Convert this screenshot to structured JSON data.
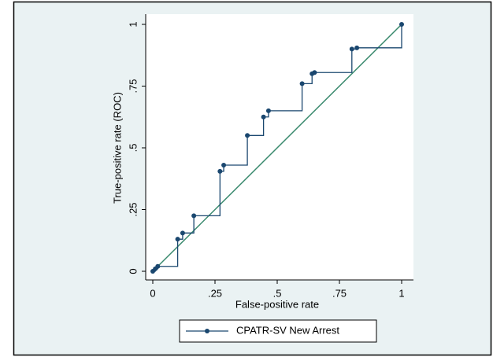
{
  "chart_data": {
    "type": "roc",
    "x_label": "False-positive rate",
    "y_label": "True-positive rate (ROC)",
    "series": [
      {
        "name": "CPATR-SV New Arrest",
        "color": "#1a476f",
        "x": [
          0,
          0.01,
          0.02,
          0.1,
          0.12,
          0.165,
          0.27,
          0.285,
          0.38,
          0.445,
          0.465,
          0.6,
          0.64,
          0.65,
          0.8,
          0.82,
          1
        ],
        "y": [
          0,
          0.01,
          0.02,
          0.13,
          0.155,
          0.225,
          0.405,
          0.43,
          0.55,
          0.625,
          0.65,
          0.76,
          0.8,
          0.805,
          0.9,
          0.905,
          1
        ]
      }
    ],
    "reference_color": "#3a8a6e",
    "xlim": [
      0,
      1
    ],
    "ylim": [
      0,
      1
    ],
    "xticks": [
      0,
      {
        "value": 0.25,
        "label": ".25"
      },
      {
        "value": 0.5,
        "label": ".5"
      },
      {
        "value": 0.75,
        "label": ".75"
      },
      1
    ],
    "yticks": [
      0,
      {
        "value": 0.25,
        "label": ".25"
      },
      {
        "value": 0.5,
        "label": ".5"
      },
      {
        "value": 0.75,
        "label": ".75"
      },
      1
    ]
  }
}
